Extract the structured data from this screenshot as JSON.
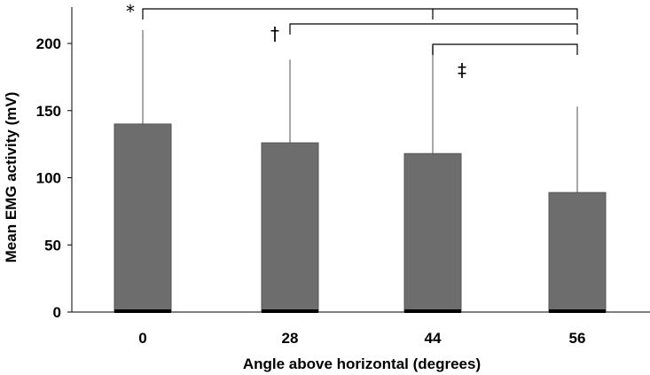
{
  "chart_data": {
    "type": "bar",
    "categories": [
      "0",
      "28",
      "44",
      "56"
    ],
    "values": [
      140,
      126,
      118,
      89
    ],
    "error_upper": [
      210,
      188,
      198,
      153
    ],
    "xlabel": "Angle above horizontal (degrees)",
    "ylabel": "Mean EMG activity (mV)",
    "ylim": [
      0,
      220
    ],
    "yticks": [
      0,
      50,
      100,
      150,
      200
    ],
    "bar_color": "#6d6d6d",
    "grid": false,
    "significance": [
      {
        "symbol": "*",
        "from": 0,
        "to": [
          2,
          3
        ]
      },
      {
        "symbol": "†",
        "from": 1,
        "to": [
          3
        ]
      },
      {
        "symbol": "‡",
        "from": 2,
        "to": [
          3
        ]
      }
    ]
  }
}
